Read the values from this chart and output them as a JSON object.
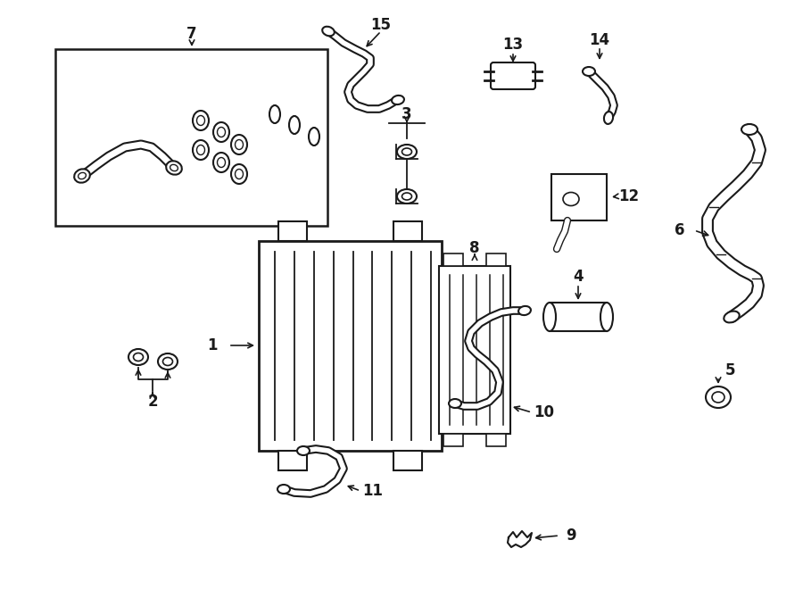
{
  "background_color": "#ffffff",
  "line_color": "#1a1a1a",
  "fig_width": 9.0,
  "fig_height": 6.61,
  "label_fontsize": 12
}
